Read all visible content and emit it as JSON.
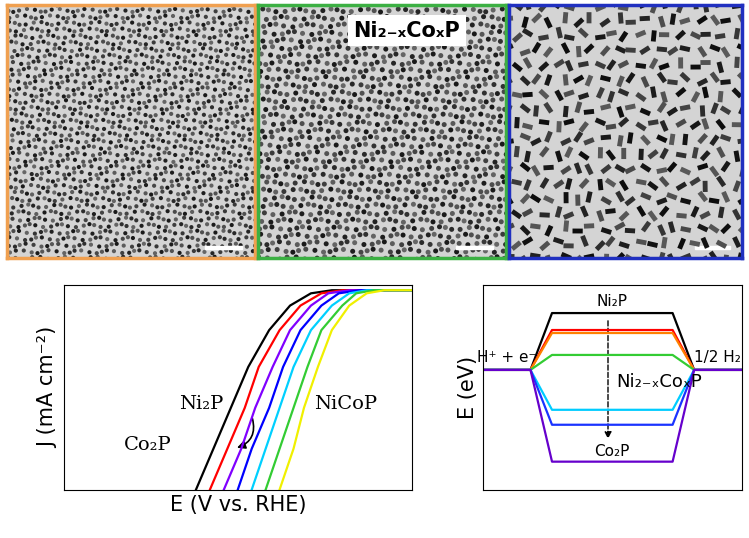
{
  "tem_images": {
    "label": "Ni₂₋ₓCoₓP",
    "frame_colors": [
      "#f0a050",
      "#3cb043",
      "#2030c0"
    ]
  },
  "chart_data": [
    {
      "type": "line",
      "xlabel": "E (V vs. RHE)",
      "ylabel": "J (mA cm⁻²)",
      "xlim": [
        0,
        1
      ],
      "ylim": [
        0,
        1
      ],
      "tick_labels": false,
      "annotations": [
        "Ni₂P",
        "Co₂P",
        "NiCoP"
      ],
      "series": [
        {
          "color": "#000000",
          "x": [
            0.38,
            0.43,
            0.48,
            0.53,
            0.59,
            0.65,
            0.71,
            0.77,
            1.0
          ],
          "values": [
            0,
            0.2,
            0.4,
            0.6,
            0.78,
            0.9,
            0.96,
            0.975,
            0.975
          ]
        },
        {
          "color": "#ff0000",
          "x": [
            0.42,
            0.47,
            0.52,
            0.56,
            0.62,
            0.68,
            0.74,
            0.8,
            1.0
          ],
          "values": [
            0,
            0.2,
            0.4,
            0.6,
            0.78,
            0.9,
            0.96,
            0.975,
            0.975
          ]
        },
        {
          "color": "#8000ff",
          "x": [
            0.46,
            0.51,
            0.55,
            0.6,
            0.65,
            0.71,
            0.76,
            0.82,
            1.0
          ],
          "values": [
            0,
            0.2,
            0.4,
            0.6,
            0.78,
            0.9,
            0.96,
            0.975,
            0.975
          ]
        },
        {
          "color": "#0000ff",
          "x": [
            0.5,
            0.54,
            0.59,
            0.63,
            0.68,
            0.74,
            0.79,
            0.85,
            1.0
          ],
          "values": [
            0,
            0.2,
            0.4,
            0.6,
            0.78,
            0.9,
            0.96,
            0.975,
            0.975
          ]
        },
        {
          "color": "#00d0ff",
          "x": [
            0.54,
            0.58,
            0.62,
            0.66,
            0.71,
            0.77,
            0.82,
            0.87,
            1.0
          ],
          "values": [
            0,
            0.2,
            0.4,
            0.6,
            0.78,
            0.9,
            0.96,
            0.975,
            0.975
          ]
        },
        {
          "color": "#33cc33",
          "x": [
            0.58,
            0.62,
            0.66,
            0.7,
            0.74,
            0.8,
            0.84,
            0.89,
            1.0
          ],
          "values": [
            0,
            0.2,
            0.4,
            0.6,
            0.78,
            0.9,
            0.96,
            0.975,
            0.975
          ]
        },
        {
          "color": "#f0f000",
          "x": [
            0.62,
            0.66,
            0.69,
            0.73,
            0.77,
            0.82,
            0.87,
            0.92,
            1.0
          ],
          "values": [
            0,
            0.2,
            0.4,
            0.6,
            0.78,
            0.9,
            0.96,
            0.975,
            0.975
          ]
        }
      ]
    },
    {
      "type": "energy_diagram",
      "ylabel": "E (eV)",
      "ylim": [
        -1.2,
        0.85
      ],
      "tick_labels": false,
      "annotations": [
        "H⁺ + e⁻",
        "1/2 H₂",
        "Ni₂P",
        "Ni₂₋ₓCoₓP",
        "Co₂P"
      ],
      "series": [
        {
          "color": "#000000",
          "values": [
            0,
            0.57,
            0
          ]
        },
        {
          "color": "#ff0000",
          "values": [
            0,
            0.4,
            0
          ]
        },
        {
          "color": "#ff8000",
          "values": [
            0,
            0.37,
            0
          ]
        },
        {
          "color": "#33cc33",
          "values": [
            0,
            0.15,
            0
          ]
        },
        {
          "color": "#00ccff",
          "values": [
            0,
            -0.4,
            0
          ]
        },
        {
          "color": "#1a33ff",
          "values": [
            0,
            -0.55,
            0
          ]
        },
        {
          "color": "#6600cc",
          "values": [
            0,
            -0.92,
            0
          ]
        }
      ]
    }
  ]
}
